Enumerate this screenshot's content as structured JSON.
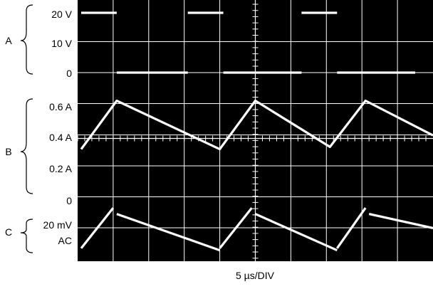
{
  "colors": {
    "screen_background": "#000000",
    "grid": "#ffffff",
    "trace": "#ffffff",
    "page_background": "#ffffff",
    "label_text": "#000000"
  },
  "chart_data": {
    "type": "line",
    "title": "",
    "xlabel": "5 µs/DIV",
    "x_unit": "µs",
    "x_divisions": 10,
    "x_per_division": 5,
    "x_range": [
      0,
      50
    ],
    "grid": true,
    "channels": [
      {
        "name": "A",
        "side_label": "A",
        "tick_labels": [
          "20 V",
          "10 V",
          "0"
        ],
        "unit": "V",
        "y_range": [
          0,
          20
        ],
        "segments": [
          [
            [
              0.5,
              20
            ],
            [
              5.5,
              20
            ]
          ],
          [
            [
              5.5,
              0
            ],
            [
              15.5,
              0
            ]
          ],
          [
            [
              15.5,
              20
            ],
            [
              20.5,
              20
            ]
          ],
          [
            [
              20.5,
              0
            ],
            [
              31.5,
              0
            ]
          ],
          [
            [
              31.5,
              20
            ],
            [
              36.5,
              20
            ]
          ],
          [
            [
              36.5,
              0
            ],
            [
              47.5,
              0
            ]
          ]
        ]
      },
      {
        "name": "B",
        "side_label": "B",
        "tick_labels": [
          "0.6 A",
          "0.4 A",
          "0.2 A",
          "0"
        ],
        "unit": "A",
        "y_range": [
          0,
          0.8
        ],
        "segments": [
          [
            [
              0.5,
              0.33
            ],
            [
              5.5,
              0.645
            ],
            [
              20.0,
              0.33
            ],
            [
              25.0,
              0.645
            ],
            [
              35.5,
              0.345
            ],
            [
              40.5,
              0.645
            ],
            [
              50.0,
              0.42
            ]
          ]
        ]
      },
      {
        "name": "C",
        "side_label": "C",
        "tick_labels": [
          "20 mV",
          "AC"
        ],
        "unit": "mV",
        "coupling": "AC",
        "y_range": [
          -30,
          30
        ],
        "segments": [
          [
            [
              0.5,
              -15
            ],
            [
              5.0,
              25
            ]
          ],
          [
            [
              5.5,
              19
            ],
            [
              20.0,
              -17
            ]
          ],
          [
            [
              20.0,
              -15
            ],
            [
              24.5,
              25
            ]
          ],
          [
            [
              25.0,
              19
            ],
            [
              36.5,
              -17
            ]
          ],
          [
            [
              36.5,
              -15
            ],
            [
              40.5,
              25
            ]
          ],
          [
            [
              41.0,
              19
            ],
            [
              50.0,
              5
            ]
          ]
        ]
      }
    ]
  }
}
